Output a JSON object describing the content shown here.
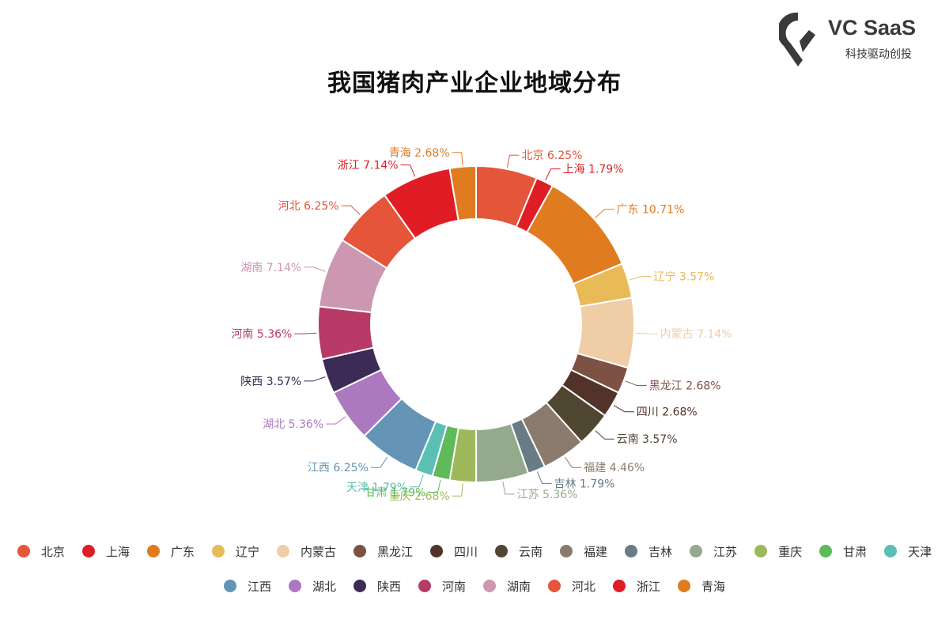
{
  "title": "我国猪肉产业企业地域分布",
  "brand": {
    "name": "VC SaaS",
    "tagline": "科技驱动创投"
  },
  "chart_data": {
    "type": "pie",
    "title": "我国猪肉产业企业地域分布",
    "subtype": "donut",
    "legend_position": "bottom",
    "slices": [
      {
        "name": "北京",
        "value": 6.25,
        "color": "#e4553a"
      },
      {
        "name": "上海",
        "value": 1.79,
        "color": "#e01d24"
      },
      {
        "name": "广东",
        "value": 10.71,
        "color": "#e07b20"
      },
      {
        "name": "辽宁",
        "value": 3.57,
        "color": "#e8ba58"
      },
      {
        "name": "内蒙古",
        "value": 7.14,
        "color": "#efcda6"
      },
      {
        "name": "黑龙江",
        "value": 2.68,
        "color": "#7d5143"
      },
      {
        "name": "四川",
        "value": 2.68,
        "color": "#533329"
      },
      {
        "name": "云南",
        "value": 3.57,
        "color": "#4f4731"
      },
      {
        "name": "福建",
        "value": 4.46,
        "color": "#8a7b6e"
      },
      {
        "name": "吉林",
        "value": 1.79,
        "color": "#687c86"
      },
      {
        "name": "江苏",
        "value": 5.36,
        "color": "#95aa8d"
      },
      {
        "name": "重庆",
        "value": 2.68,
        "color": "#9eb95c"
      },
      {
        "name": "甘肃",
        "value": 1.79,
        "color": "#5fba5a"
      },
      {
        "name": "天津",
        "value": 1.79,
        "color": "#5cbfb3"
      },
      {
        "name": "江西",
        "value": 6.25,
        "color": "#6495b7"
      },
      {
        "name": "湖北",
        "value": 5.36,
        "color": "#ac78c0"
      },
      {
        "name": "陕西",
        "value": 3.57,
        "color": "#3c2b56"
      },
      {
        "name": "河南",
        "value": 5.36,
        "color": "#b73a67"
      },
      {
        "name": "湖南",
        "value": 7.14,
        "color": "#cb97b1"
      },
      {
        "name": "河北",
        "value": 6.25,
        "color": "#e4553a"
      },
      {
        "name": "浙江",
        "value": 7.14,
        "color": "#e01d24"
      },
      {
        "name": "青海",
        "value": 2.68,
        "color": "#e07b20"
      }
    ],
    "labels": [
      "北京 6.25%",
      "上海 1.79%",
      "广东 10.71%",
      "辽宁 3.57%",
      "内蒙古 7.14%",
      "黑龙江 2.68%",
      "四川 2.68%",
      "云南 3.57%",
      "福建 4.46%",
      "吉林 1.79%",
      "江苏 5.36%",
      "重庆 2.68%",
      "甘肃 1.79%",
      "天津 1.79%",
      "江西 6.25%",
      "湖北 5.36%",
      "陕西 3.57%",
      "河南 5.36%",
      "湖南 7.14%",
      "河北 6.25%",
      "浙江 7.14%",
      "青海 2.68%"
    ]
  }
}
